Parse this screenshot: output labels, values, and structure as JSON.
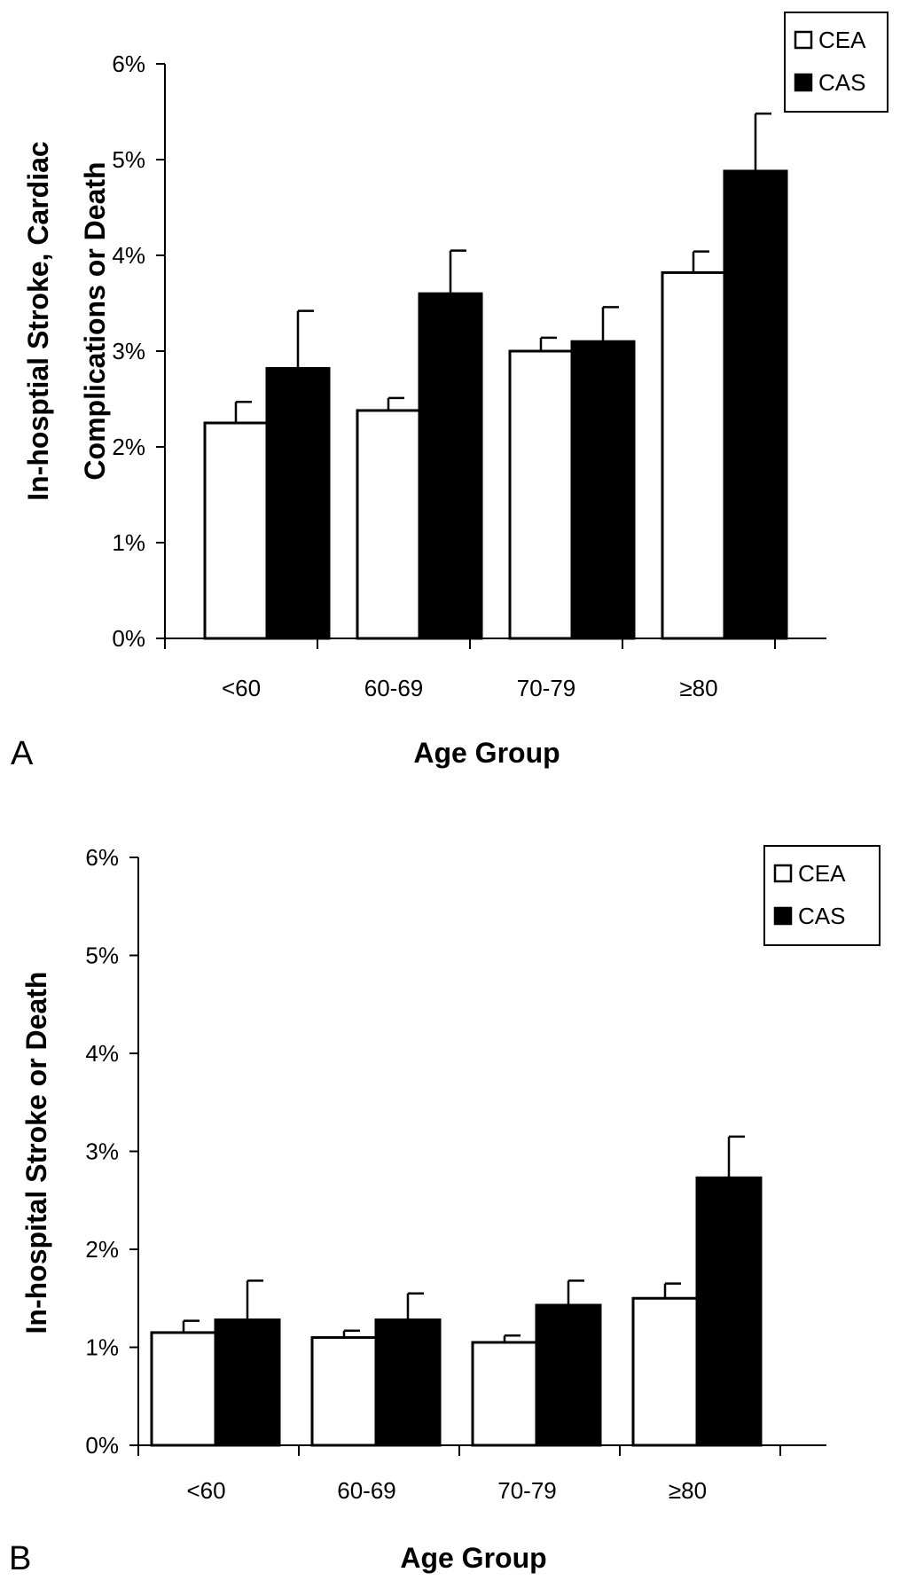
{
  "chart_data": [
    {
      "type": "bar",
      "panel_label": "A",
      "categories": [
        "<60",
        "60-69",
        "70-79",
        "≥80"
      ],
      "series": [
        {
          "name": "CEA",
          "values": [
            2.25,
            2.38,
            3.0,
            3.82
          ],
          "error": [
            0.22,
            0.13,
            0.14,
            0.22
          ],
          "color": "#ffffff"
        },
        {
          "name": "CAS",
          "values": [
            2.82,
            3.6,
            3.1,
            4.88
          ],
          "error": [
            0.6,
            0.45,
            0.36,
            0.6
          ],
          "color": "#000000"
        }
      ],
      "xlabel": "Age Group",
      "ylabel_lines": [
        "In-hosptial Stroke, Cardiac",
        "Complications or Death"
      ],
      "ylim": [
        0,
        6
      ],
      "yticks": [
        "0%",
        "1%",
        "2%",
        "3%",
        "4%",
        "5%",
        "6%"
      ],
      "grid": false,
      "legend_position": "top-right"
    },
    {
      "type": "bar",
      "panel_label": "B",
      "categories": [
        "<60",
        "60-69",
        "70-79",
        "≥80"
      ],
      "series": [
        {
          "name": "CEA",
          "values": [
            1.15,
            1.1,
            1.05,
            1.5
          ],
          "error": [
            0.12,
            0.07,
            0.07,
            0.15
          ],
          "color": "#ffffff"
        },
        {
          "name": "CAS",
          "values": [
            1.28,
            1.28,
            1.43,
            2.73
          ],
          "error": [
            0.4,
            0.27,
            0.25,
            0.42
          ],
          "color": "#000000"
        }
      ],
      "xlabel": "Age Group",
      "ylabel_lines": [
        "In-hospital Stroke or Death"
      ],
      "ylim": [
        0,
        6
      ],
      "yticks": [
        "0%",
        "1%",
        "2%",
        "3%",
        "4%",
        "5%",
        "6%"
      ],
      "grid": false,
      "legend_position": "top-right"
    }
  ]
}
